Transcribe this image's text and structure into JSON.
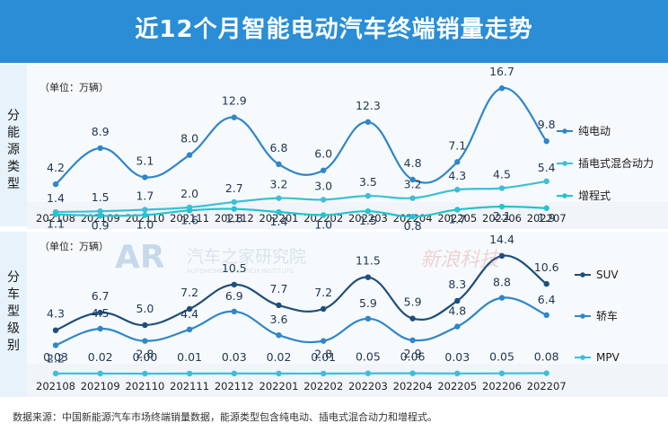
{
  "title": "近12个月智能电动汽车终端销量走势",
  "footnote": "数据来源：中国新能源汽车市场终端销量数据，能源类型包含纯电动、插电式混合动力和增程式。",
  "watermarks": [
    "汽车之家研究院",
    "AUTOHOME RESEARCH INSTITUTE",
    "新浪科技"
  ],
  "colors": {
    "title_bg": "#2a8dd6",
    "panel_bg": "#e7f2fb",
    "band": "#f1f5fa",
    "dark_blue": "#1f4e7a",
    "mid_blue": "#2f86c9",
    "teal": "#3cbfd6",
    "cyan": "#22c4cf"
  },
  "chart_data": [
    {
      "type": "line",
      "panel_label": "分能源类型",
      "unit": "（单位：万辆）",
      "categories": [
        "202108",
        "202109",
        "202110",
        "202111",
        "202112",
        "202201",
        "202202",
        "202203",
        "202204",
        "202205",
        "202206",
        "202207"
      ],
      "series": [
        {
          "name": "纯电动",
          "color": "#2f86c9",
          "values": [
            4.2,
            8.9,
            5.1,
            8.0,
            12.9,
            6.8,
            6.0,
            12.3,
            4.8,
            7.1,
            16.7,
            9.8
          ]
        },
        {
          "name": "插电式混合动力",
          "color": "#3cbfd6",
          "values": [
            1.4,
            1.5,
            1.7,
            2.0,
            2.7,
            3.2,
            3.0,
            3.5,
            3.2,
            4.3,
            4.5,
            5.4
          ]
        },
        {
          "name": "增程式",
          "color": "#22c4cf",
          "values": [
            1.1,
            0.9,
            1.0,
            1.6,
            1.8,
            1.4,
            1.0,
            1.5,
            0.8,
            1.7,
            2.1,
            1.9
          ]
        }
      ]
    },
    {
      "type": "line",
      "panel_label": "分车型级别",
      "unit": "（单位：万辆）",
      "categories": [
        "202108",
        "202109",
        "202110",
        "202111",
        "202112",
        "202201",
        "202202",
        "202203",
        "202204",
        "202205",
        "202206",
        "202207"
      ],
      "series": [
        {
          "name": "SUV",
          "color": "#1f4e7a",
          "values": [
            4.3,
            6.7,
            5.0,
            7.2,
            10.5,
            7.7,
            7.2,
            11.5,
            5.9,
            8.3,
            14.4,
            10.6
          ]
        },
        {
          "name": "轿车",
          "color": "#2f86c9",
          "values": [
            2.2,
            4.5,
            2.8,
            4.4,
            6.9,
            3.6,
            2.8,
            5.9,
            2.9,
            4.8,
            8.8,
            6.4
          ]
        },
        {
          "name": "MPV",
          "color": "#3cbfd6",
          "values": [
            0.03,
            0.02,
            0.0,
            0.01,
            0.03,
            0.02,
            0.01,
            0.05,
            0.06,
            0.03,
            0.05,
            0.08
          ]
        }
      ]
    }
  ]
}
